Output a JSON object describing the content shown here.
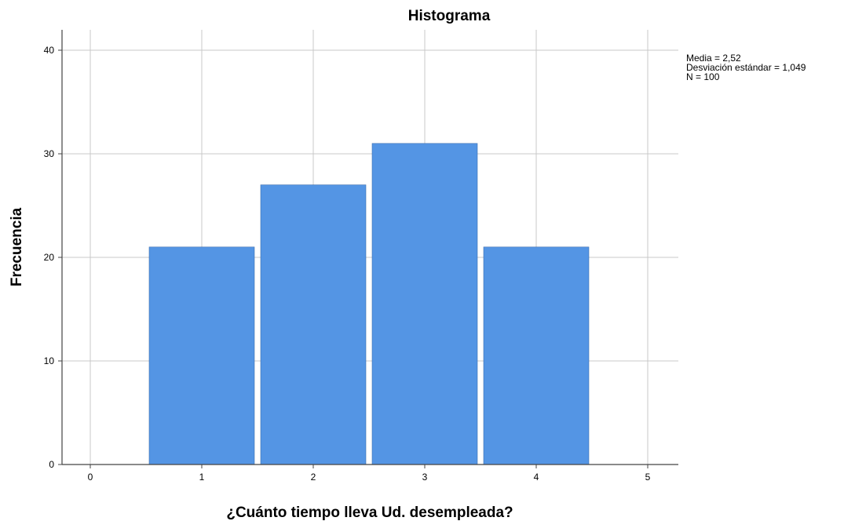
{
  "chart_data": {
    "type": "bar",
    "title": "Histograma",
    "xlabel": "¿Cuánto tiempo lleva Ud. desempleada?",
    "ylabel": "Frecuencia",
    "x_ticks": [
      "0",
      "1",
      "2",
      "3",
      "4",
      "5"
    ],
    "y_ticks": [
      "0",
      "10",
      "20",
      "30",
      "40"
    ],
    "xlim": [
      0,
      5
    ],
    "ylim": [
      0,
      40
    ],
    "grid": true,
    "categories": [
      "1",
      "2",
      "3",
      "4"
    ],
    "values": [
      21,
      27,
      31,
      21
    ],
    "bar_color": "#5495e4",
    "stats": {
      "mean": "Media = 2,52",
      "std": "Desviación estándar = 1,049",
      "n": "N = 100"
    }
  }
}
